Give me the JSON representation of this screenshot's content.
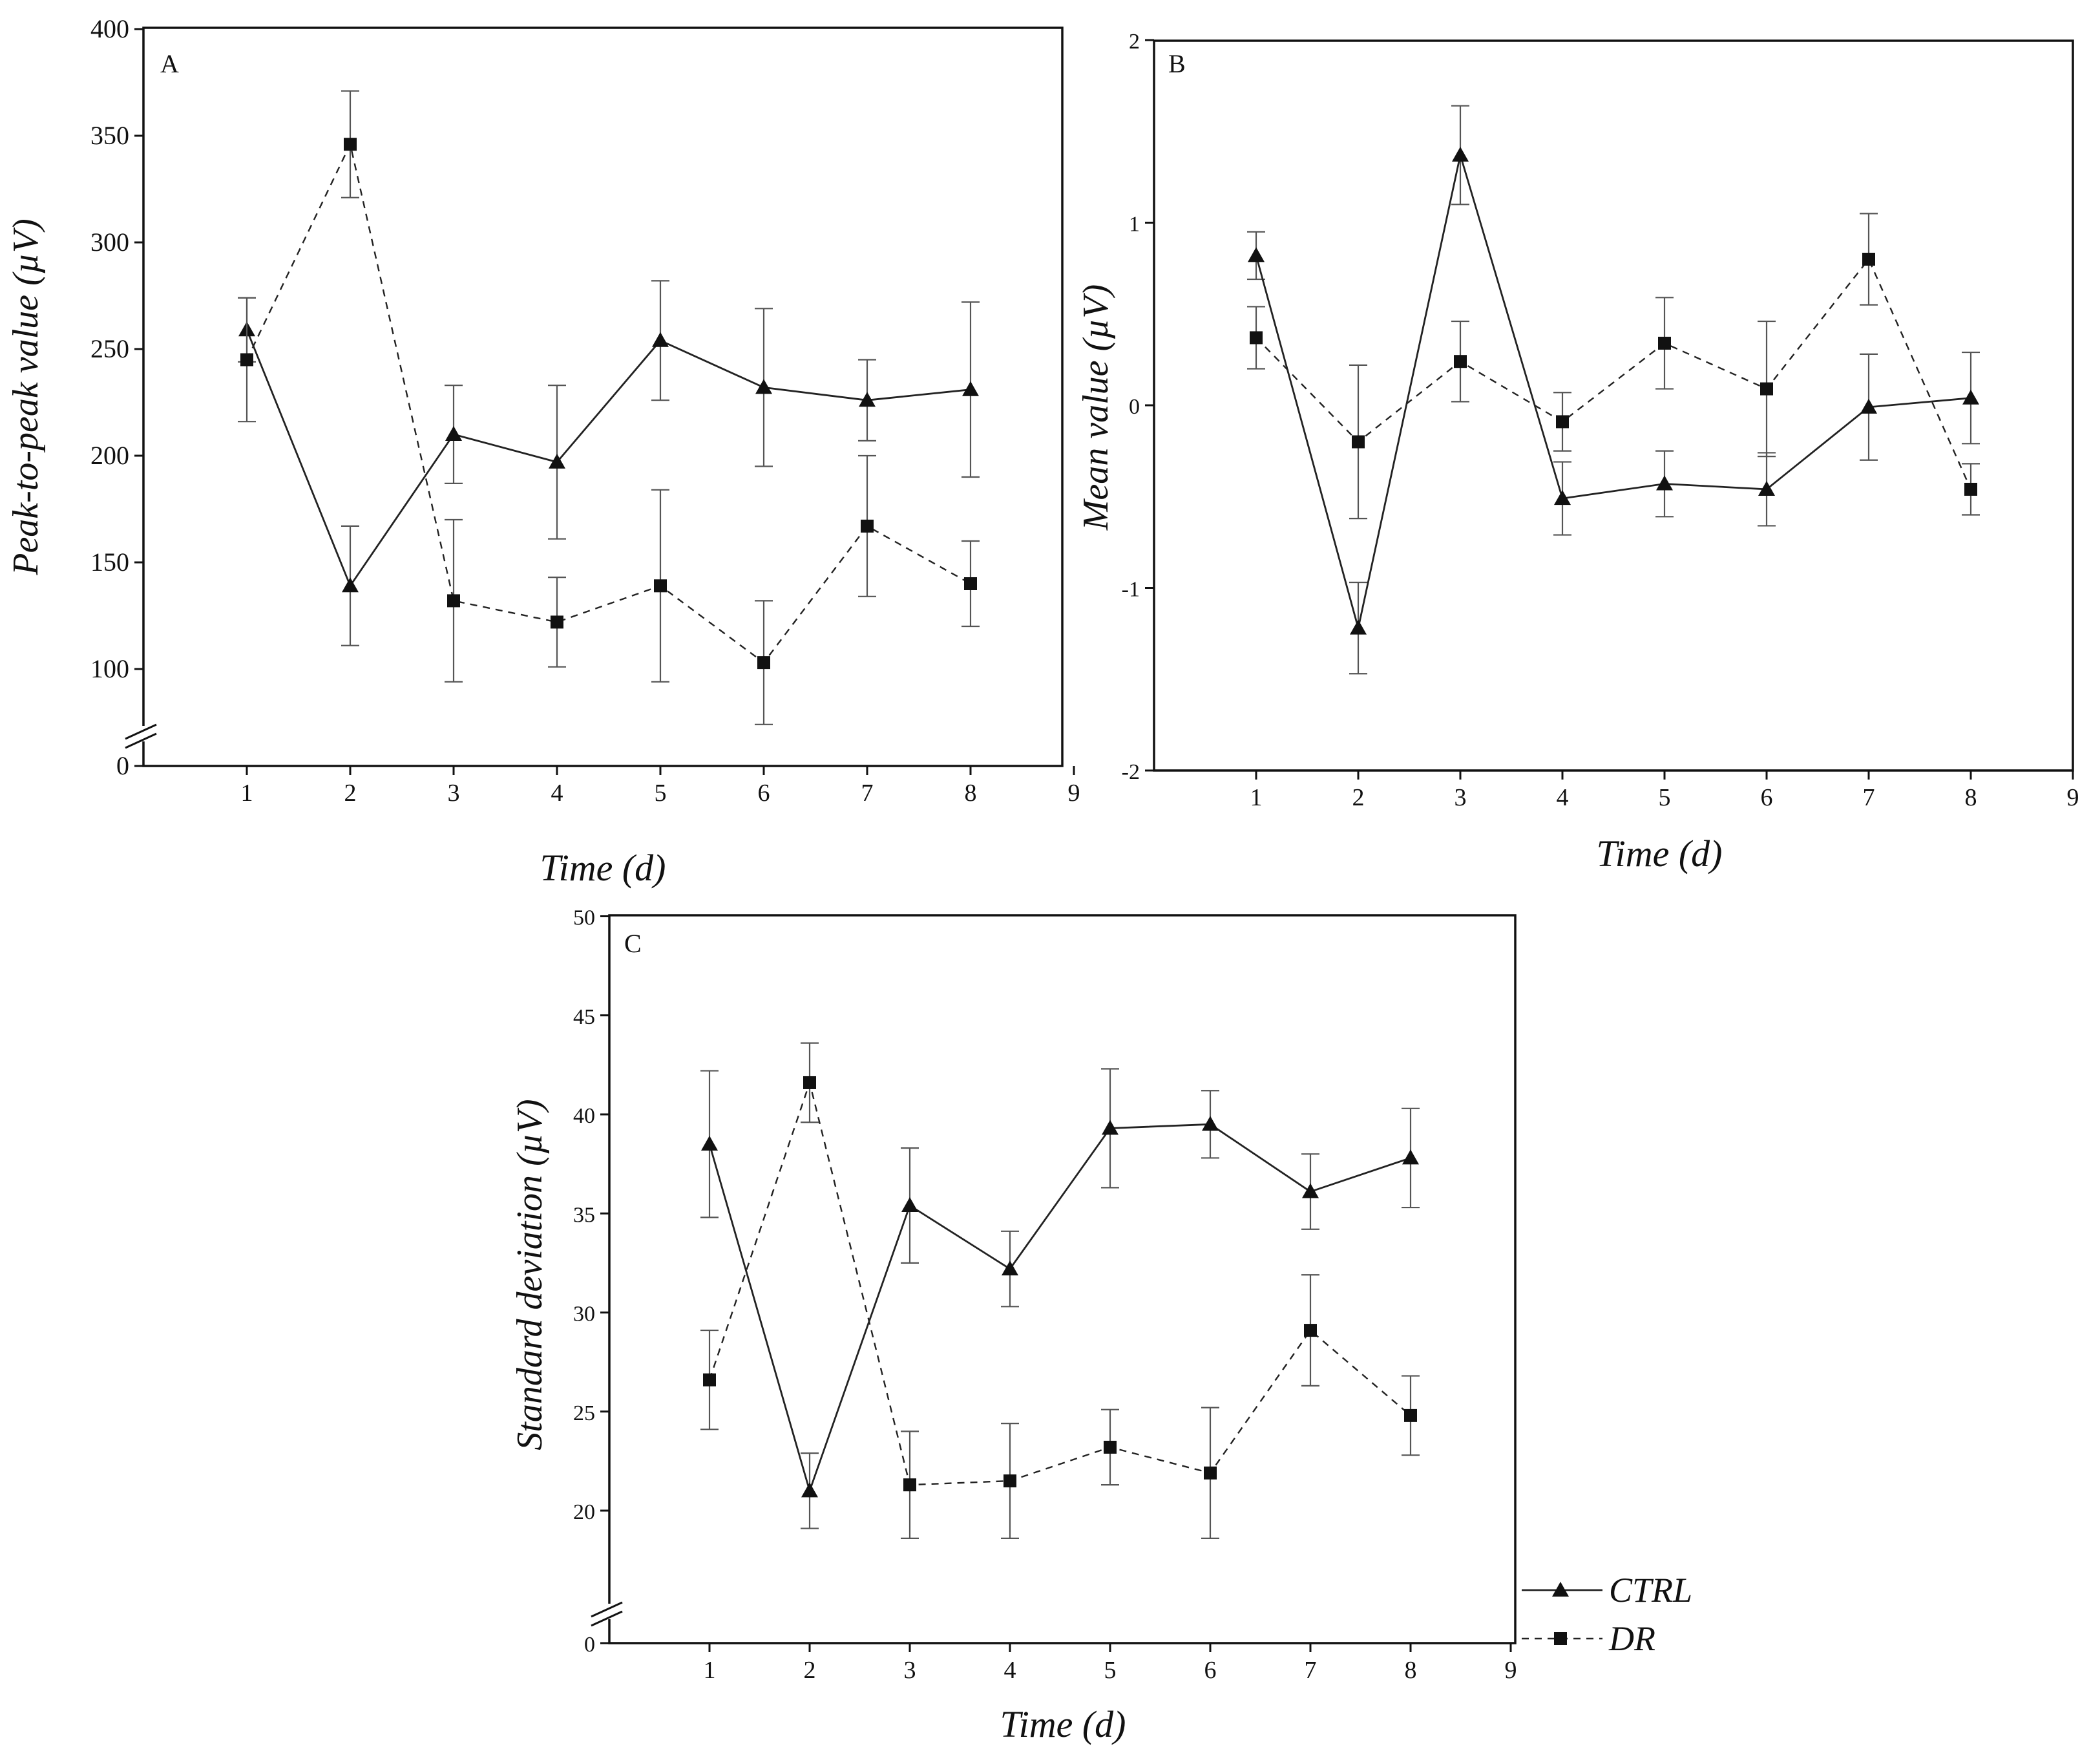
{
  "legend": {
    "entries": [
      {
        "series": "ctrl",
        "label": "CTRL",
        "marker": "triangle",
        "line": "solid"
      },
      {
        "series": "dr",
        "label": "DR",
        "marker": "square",
        "line": "dashed"
      }
    ]
  },
  "chart_data": [
    {
      "panel": "A",
      "type": "line",
      "xlabel": "Time (d)",
      "ylabel": "Peak-to-peak value (µV)",
      "xlim": [
        0,
        9
      ],
      "x_ticks": [
        1,
        2,
        3,
        4,
        5,
        6,
        7,
        8,
        9
      ],
      "ylim": [
        0,
        400
      ],
      "y_ticks": [
        0,
        100,
        150,
        200,
        250,
        300,
        350,
        400
      ],
      "axis_break": {
        "from": 0,
        "to": 80
      },
      "x": [
        1,
        2,
        3,
        4,
        5,
        6,
        7,
        8
      ],
      "series": [
        {
          "name": "CTRL",
          "key": "ctrl",
          "values": [
            259,
            139,
            210,
            197,
            254,
            232,
            226,
            231
          ],
          "errors": [
            15,
            28,
            23,
            36,
            28,
            37,
            19,
            41
          ]
        },
        {
          "name": "DR",
          "key": "dr",
          "values": [
            245,
            346,
            132,
            122,
            139,
            103,
            167,
            140
          ],
          "errors": [
            29,
            25,
            38,
            21,
            45,
            29,
            33,
            20
          ]
        }
      ]
    },
    {
      "panel": "B",
      "type": "line",
      "xlabel": "Time (d)",
      "ylabel": "Mean value (µV)",
      "xlim": [
        0,
        9
      ],
      "x_ticks": [
        1,
        2,
        3,
        4,
        5,
        6,
        7,
        8,
        9
      ],
      "ylim": [
        -2,
        2
      ],
      "y_ticks": [
        -2,
        -1,
        0,
        1,
        2
      ],
      "x": [
        1,
        2,
        3,
        4,
        5,
        6,
        7,
        8
      ],
      "series": [
        {
          "name": "CTRL",
          "key": "ctrl",
          "values": [
            0.82,
            -1.22,
            1.37,
            -0.51,
            -0.43,
            -0.46,
            -0.01,
            0.04
          ],
          "errors": [
            0.13,
            0.25,
            0.27,
            0.2,
            0.18,
            0.2,
            0.29,
            0.25
          ]
        },
        {
          "name": "DR",
          "key": "dr",
          "values": [
            0.37,
            -0.2,
            0.24,
            -0.09,
            0.34,
            0.09,
            0.8,
            -0.46
          ],
          "errors": [
            0.17,
            0.42,
            0.22,
            0.16,
            0.25,
            0.37,
            0.25,
            0.14
          ]
        }
      ]
    },
    {
      "panel": "C",
      "type": "line",
      "xlabel": "Time (d)",
      "ylabel": "Standard deviation (µV)",
      "xlim": [
        0,
        9
      ],
      "x_ticks": [
        1,
        2,
        3,
        4,
        5,
        6,
        7,
        8,
        9
      ],
      "ylim": [
        0,
        50
      ],
      "y_ticks": [
        0,
        20,
        25,
        30,
        35,
        40,
        45,
        50
      ],
      "axis_break": {
        "from": 0,
        "to": 16
      },
      "x": [
        1,
        2,
        3,
        4,
        5,
        6,
        7,
        8
      ],
      "series": [
        {
          "name": "CTRL",
          "key": "ctrl",
          "values": [
            38.5,
            21.0,
            35.4,
            32.2,
            39.3,
            39.5,
            36.1,
            37.8
          ],
          "errors": [
            3.7,
            1.9,
            2.9,
            1.9,
            3.0,
            1.7,
            1.9,
            2.5
          ]
        },
        {
          "name": "DR",
          "key": "dr",
          "values": [
            26.6,
            41.6,
            21.3,
            21.5,
            23.2,
            21.9,
            29.1,
            24.8
          ],
          "errors": [
            2.5,
            2.0,
            2.7,
            2.9,
            1.9,
            3.3,
            2.8,
            2.0
          ]
        }
      ]
    }
  ]
}
